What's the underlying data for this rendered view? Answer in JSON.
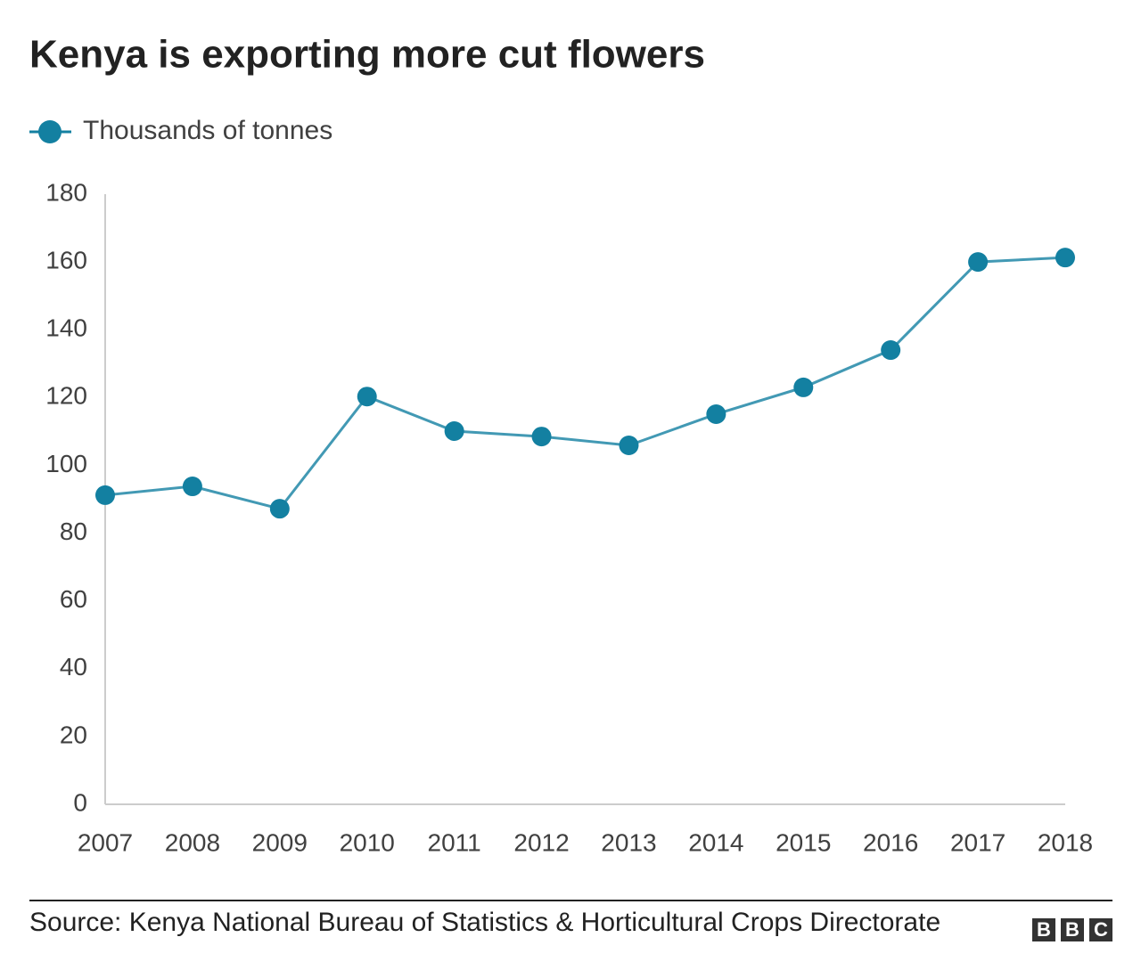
{
  "chart_data": {
    "type": "line",
    "title": "Kenya is exporting more cut flowers",
    "categories": [
      "2007",
      "2008",
      "2009",
      "2010",
      "2011",
      "2012",
      "2013",
      "2014",
      "2015",
      "2016",
      "2017",
      "2018"
    ],
    "series": [
      {
        "name": "Thousands of tonnes",
        "color": "#1380a1",
        "values": [
          91.2,
          93.8,
          87.2,
          120.3,
          110.1,
          108.5,
          105.9,
          115.1,
          123.0,
          134.0,
          160.0,
          161.3
        ]
      }
    ],
    "ylim": [
      0,
      180
    ],
    "yticks": [
      0,
      20,
      40,
      60,
      80,
      100,
      120,
      140,
      160,
      180
    ],
    "grid": false,
    "source": "Source: Kenya National Bureau of Statistics & Horticultural Crops Directorate",
    "logo": [
      "B",
      "B",
      "C"
    ]
  }
}
